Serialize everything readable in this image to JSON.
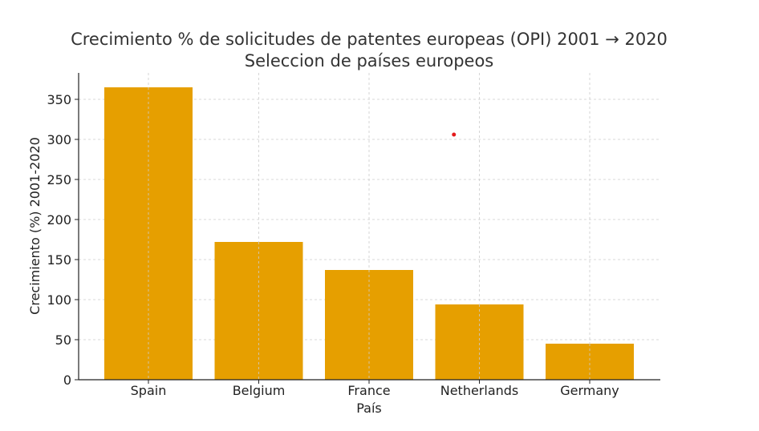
{
  "chart_data": {
    "type": "bar",
    "title": "Crecimiento % de solicitudes de patentes europeas (OPI) 2001 → 2020",
    "subtitle": "Seleccion de países europeos",
    "xlabel": "País",
    "ylabel": "Crecimiento (%) 2001-2020",
    "categories": [
      "Spain",
      "Belgium",
      "France",
      "Netherlands",
      "Germany"
    ],
    "values": [
      365,
      172,
      137,
      94,
      45
    ],
    "ylim": [
      0,
      383
    ],
    "yticks": [
      0,
      50,
      100,
      150,
      200,
      250,
      300,
      350
    ],
    "grid": true,
    "bar_color": "#E69F00",
    "annotations": [
      {
        "type": "marker",
        "x_between": [
          "France",
          "Netherlands"
        ],
        "y": 306,
        "color": "#e41a1c"
      }
    ]
  }
}
